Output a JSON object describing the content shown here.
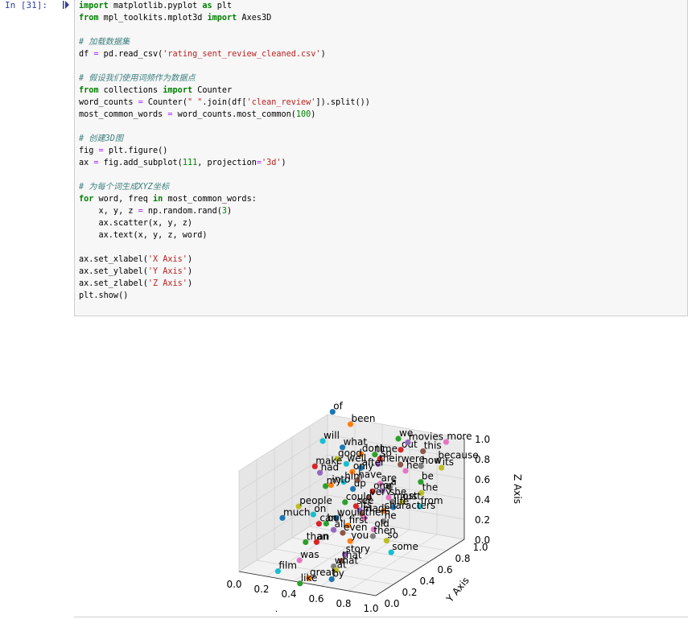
{
  "cell": {
    "prompt": "In  [31]:",
    "run_marker_icon": "run-cursor-icon",
    "code_lines": [
      [
        {
          "t": "import",
          "c": "kw"
        },
        {
          "t": " matplotlib.pyplot ",
          "c": ""
        },
        {
          "t": "as",
          "c": "kw"
        },
        {
          "t": " plt",
          "c": ""
        }
      ],
      [
        {
          "t": "from",
          "c": "kw"
        },
        {
          "t": " mpl_toolkits.mplot3d ",
          "c": ""
        },
        {
          "t": "import",
          "c": "kw"
        },
        {
          "t": " Axes3D",
          "c": ""
        }
      ],
      [],
      [
        {
          "t": "# 加载数据集",
          "c": "cm"
        }
      ],
      [
        {
          "t": "df ",
          "c": ""
        },
        {
          "t": "=",
          "c": "op"
        },
        {
          "t": " pd.read_csv(",
          "c": ""
        },
        {
          "t": "'rating_sent_review_cleaned.csv'",
          "c": "st"
        },
        {
          "t": ")",
          "c": ""
        }
      ],
      [],
      [
        {
          "t": "# 假设我们使用词频作为数据点",
          "c": "cm"
        }
      ],
      [
        {
          "t": "from",
          "c": "kw"
        },
        {
          "t": " collections ",
          "c": ""
        },
        {
          "t": "import",
          "c": "kw"
        },
        {
          "t": " Counter",
          "c": ""
        }
      ],
      [
        {
          "t": "word_counts ",
          "c": ""
        },
        {
          "t": "=",
          "c": "op"
        },
        {
          "t": " Counter(",
          "c": ""
        },
        {
          "t": "\" \"",
          "c": "st"
        },
        {
          "t": ".join(df[",
          "c": ""
        },
        {
          "t": "'clean_review'",
          "c": "st"
        },
        {
          "t": "]).split())",
          "c": ""
        }
      ],
      [
        {
          "t": "most_common_words ",
          "c": ""
        },
        {
          "t": "=",
          "c": "op"
        },
        {
          "t": " word_counts.most_common(",
          "c": ""
        },
        {
          "t": "100",
          "c": "nu"
        },
        {
          "t": ")",
          "c": ""
        }
      ],
      [],
      [
        {
          "t": "# 创建3D图",
          "c": "cm"
        }
      ],
      [
        {
          "t": "fig ",
          "c": ""
        },
        {
          "t": "=",
          "c": "op"
        },
        {
          "t": " plt.figure()",
          "c": ""
        }
      ],
      [
        {
          "t": "ax ",
          "c": ""
        },
        {
          "t": "=",
          "c": "op"
        },
        {
          "t": " fig.add_subplot(",
          "c": ""
        },
        {
          "t": "111",
          "c": "nu"
        },
        {
          "t": ", projection",
          "c": ""
        },
        {
          "t": "=",
          "c": "op"
        },
        {
          "t": "'3d'",
          "c": "st"
        },
        {
          "t": ")",
          "c": ""
        }
      ],
      [],
      [
        {
          "t": "# 为每个词生成XYZ坐标",
          "c": "cm"
        }
      ],
      [
        {
          "t": "for",
          "c": "kw"
        },
        {
          "t": " word, freq ",
          "c": ""
        },
        {
          "t": "in",
          "c": "kw"
        },
        {
          "t": " most_common_words:",
          "c": ""
        }
      ],
      [
        {
          "t": "    x, y, z ",
          "c": ""
        },
        {
          "t": "=",
          "c": "op"
        },
        {
          "t": " np.random.rand(",
          "c": ""
        },
        {
          "t": "3",
          "c": "nu"
        },
        {
          "t": ")",
          "c": ""
        }
      ],
      [
        {
          "t": "    ax.scatter(x, y, z)",
          "c": ""
        }
      ],
      [
        {
          "t": "    ax.text(x, y, z, word)",
          "c": ""
        }
      ],
      [],
      [
        {
          "t": "ax.set_xlabel(",
          "c": ""
        },
        {
          "t": "'X Axis'",
          "c": "st"
        },
        {
          "t": ")",
          "c": ""
        }
      ],
      [
        {
          "t": "ax.set_ylabel(",
          "c": ""
        },
        {
          "t": "'Y Axis'",
          "c": "st"
        },
        {
          "t": ")",
          "c": ""
        }
      ],
      [
        {
          "t": "ax.set_zlabel(",
          "c": ""
        },
        {
          "t": "'Z Axis'",
          "c": "st"
        },
        {
          "t": ")",
          "c": ""
        }
      ],
      [
        {
          "t": "plt.show()",
          "c": ""
        }
      ]
    ]
  },
  "chart_data": {
    "type": "scatter",
    "projection": "3d",
    "xlabel": "X Axis",
    "ylabel": "Y Axis",
    "zlabel": "Z Axis",
    "xlim": [
      0,
      1
    ],
    "ylim": [
      0,
      1
    ],
    "zlim": [
      0,
      1
    ],
    "xticks": [
      "0.0",
      "0.2",
      "0.4",
      "0.6",
      "0.8",
      "1.0"
    ],
    "yticks": [
      "0.0",
      "0.2",
      "0.4",
      "0.6",
      "0.8",
      "1.0"
    ],
    "zticks": [
      "0.0",
      "0.2",
      "0.4",
      "0.6",
      "0.8",
      "1.0"
    ],
    "grid": true,
    "palette": [
      "#1f77b4",
      "#ff7f0e",
      "#2ca02c",
      "#d62728",
      "#9467bd",
      "#8c564b",
      "#e377c2",
      "#7f7f7f",
      "#bcbd22",
      "#17becf"
    ],
    "points": [
      {
        "label": "of",
        "x": 0.05,
        "y": 0.98,
        "z": 1.05
      },
      {
        "label": "been",
        "x": 0.2,
        "y": 0.95,
        "z": 0.98
      },
      {
        "label": "we",
        "x": 0.55,
        "y": 0.95,
        "z": 0.92
      },
      {
        "label": "out",
        "x": 0.6,
        "y": 0.9,
        "z": 0.85
      },
      {
        "label": "movies",
        "x": 0.62,
        "y": 0.95,
        "z": 0.9
      },
      {
        "label": "this",
        "x": 0.75,
        "y": 0.92,
        "z": 0.86
      },
      {
        "label": "more",
        "x": 0.88,
        "y": 0.98,
        "z": 0.95
      },
      {
        "label": "because",
        "x": 0.88,
        "y": 0.88,
        "z": 0.82
      },
      {
        "label": "its",
        "x": 0.95,
        "y": 0.82,
        "z": 0.8
      },
      {
        "label": "will",
        "x": 0.03,
        "y": 0.9,
        "z": 0.8
      },
      {
        "label": "what",
        "x": 0.2,
        "y": 0.86,
        "z": 0.8
      },
      {
        "label": "dont",
        "x": 0.35,
        "y": 0.84,
        "z": 0.78
      },
      {
        "label": "time",
        "x": 0.45,
        "y": 0.84,
        "z": 0.8
      },
      {
        "label": "so",
        "x": 0.5,
        "y": 0.82,
        "z": 0.78
      },
      {
        "label": "their",
        "x": 0.5,
        "y": 0.8,
        "z": 0.74
      },
      {
        "label": "were",
        "x": 0.65,
        "y": 0.82,
        "z": 0.76
      },
      {
        "label": "her",
        "x": 0.7,
        "y": 0.8,
        "z": 0.72
      },
      {
        "label": "how",
        "x": 0.8,
        "y": 0.82,
        "z": 0.78
      },
      {
        "label": "good",
        "x": 0.2,
        "y": 0.8,
        "z": 0.72
      },
      {
        "label": "well",
        "x": 0.28,
        "y": 0.78,
        "z": 0.7
      },
      {
        "label": "after",
        "x": 0.4,
        "y": 0.76,
        "z": 0.7
      },
      {
        "label": "only",
        "x": 0.35,
        "y": 0.74,
        "z": 0.66
      },
      {
        "label": "be",
        "x": 0.85,
        "y": 0.74,
        "z": 0.68
      },
      {
        "label": "make",
        "x": 0.05,
        "y": 0.78,
        "z": 0.62
      },
      {
        "label": "had",
        "x": 0.1,
        "y": 0.76,
        "z": 0.58
      },
      {
        "label": "have",
        "x": 0.4,
        "y": 0.72,
        "z": 0.6
      },
      {
        "label": "are",
        "x": 0.58,
        "y": 0.7,
        "z": 0.62
      },
      {
        "label": "a",
        "x": 0.65,
        "y": 0.7,
        "z": 0.6
      },
      {
        "label": "the",
        "x": 0.88,
        "y": 0.7,
        "z": 0.6
      },
      {
        "label": "him",
        "x": 0.3,
        "y": 0.72,
        "z": 0.56
      },
      {
        "label": "up",
        "x": 0.38,
        "y": 0.7,
        "z": 0.52
      },
      {
        "label": "into",
        "x": 0.22,
        "y": 0.7,
        "z": 0.52
      },
      {
        "label": "my",
        "x": 0.18,
        "y": 0.7,
        "z": 0.5
      },
      {
        "label": "one",
        "x": 0.55,
        "y": 0.66,
        "z": 0.56
      },
      {
        "label": "or",
        "x": 0.62,
        "y": 0.66,
        "z": 0.58
      },
      {
        "label": "very",
        "x": 0.55,
        "y": 0.62,
        "z": 0.52
      },
      {
        "label": "she",
        "x": 0.68,
        "y": 0.64,
        "z": 0.54
      },
      {
        "label": "most",
        "x": 0.72,
        "y": 0.62,
        "z": 0.52
      },
      {
        "label": "just",
        "x": 0.78,
        "y": 0.64,
        "z": 0.52
      },
      {
        "label": "from",
        "x": 0.92,
        "y": 0.62,
        "z": 0.52
      },
      {
        "label": "life",
        "x": 0.74,
        "y": 0.6,
        "z": 0.48
      },
      {
        "label": "characters",
        "x": 0.68,
        "y": 0.58,
        "z": 0.44
      },
      {
        "label": "could",
        "x": 0.4,
        "y": 0.58,
        "z": 0.46
      },
      {
        "label": "see",
        "x": 0.48,
        "y": 0.58,
        "z": 0.44
      },
      {
        "label": "its",
        "x": 0.52,
        "y": 0.56,
        "z": 0.42
      },
      {
        "label": "made",
        "x": 0.55,
        "y": 0.54,
        "z": 0.4
      },
      {
        "label": "them",
        "x": 0.58,
        "y": 0.52,
        "z": 0.38
      },
      {
        "label": "he",
        "x": 0.72,
        "y": 0.52,
        "z": 0.38
      },
      {
        "label": "people",
        "x": 0.1,
        "y": 0.52,
        "z": 0.38
      },
      {
        "label": "on",
        "x": 0.22,
        "y": 0.5,
        "z": 0.34
      },
      {
        "label": "would",
        "x": 0.4,
        "y": 0.48,
        "z": 0.36
      },
      {
        "label": "first",
        "x": 0.5,
        "y": 0.46,
        "z": 0.32
      },
      {
        "label": "but",
        "x": 0.34,
        "y": 0.46,
        "z": 0.3
      },
      {
        "label": "can",
        "x": 0.3,
        "y": 0.44,
        "z": 0.3
      },
      {
        "label": "all",
        "x": 0.42,
        "y": 0.42,
        "z": 0.28
      },
      {
        "label": "even",
        "x": 0.5,
        "y": 0.4,
        "z": 0.28
      },
      {
        "label": "old",
        "x": 0.7,
        "y": 0.44,
        "z": 0.34
      },
      {
        "label": "then",
        "x": 0.72,
        "y": 0.4,
        "z": 0.3
      },
      {
        "label": "so",
        "x": 0.82,
        "y": 0.4,
        "z": 0.28
      },
      {
        "label": "some",
        "x": 0.88,
        "y": 0.36,
        "z": 0.2
      },
      {
        "label": "much",
        "x": 0.02,
        "y": 0.46,
        "z": 0.28
      },
      {
        "label": "you",
        "x": 0.58,
        "y": 0.36,
        "z": 0.24
      },
      {
        "label": "than",
        "x": 0.28,
        "y": 0.32,
        "z": 0.18
      },
      {
        "label": "an",
        "x": 0.36,
        "y": 0.32,
        "z": 0.2
      },
      {
        "label": "story",
        "x": 0.58,
        "y": 0.3,
        "z": 0.14
      },
      {
        "label": "that",
        "x": 0.58,
        "y": 0.26,
        "z": 0.1
      },
      {
        "label": "was",
        "x": 0.3,
        "y": 0.22,
        "z": 0.06
      },
      {
        "label": "what",
        "x": 0.55,
        "y": 0.22,
        "z": 0.06
      },
      {
        "label": "at",
        "x": 0.58,
        "y": 0.2,
        "z": 0.04
      },
      {
        "label": "film",
        "x": 0.22,
        "y": 0.1,
        "z": 0.0
      },
      {
        "label": "by",
        "x": 0.6,
        "y": 0.12,
        "z": 0.0
      },
      {
        "label": "great",
        "x": 0.46,
        "y": 0.08,
        "z": 0.0
      },
      {
        "label": "like",
        "x": 0.42,
        "y": 0.04,
        "z": -0.04
      }
    ]
  }
}
